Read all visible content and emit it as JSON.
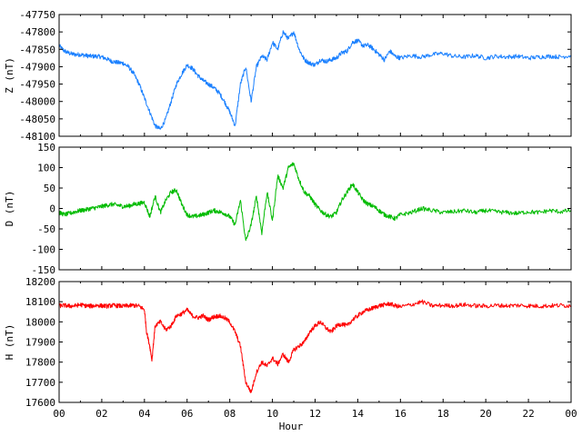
{
  "chart_data": [
    {
      "type": "line",
      "panel": "Z",
      "ylabel": "Z (nT)",
      "ylim": [
        -48100,
        -47750
      ],
      "yticks": [
        -47750,
        -47800,
        -47850,
        -47900,
        -47950,
        -48000,
        -48050,
        -48100
      ],
      "xlim": [
        0,
        24
      ],
      "grid": false,
      "color": "#1a80ff",
      "series": [
        {
          "x": [
            0,
            0.25,
            0.5,
            0.75,
            1,
            1.25,
            1.5,
            1.75,
            2,
            2.25,
            2.5,
            2.75,
            3,
            3.25,
            3.5,
            3.75,
            4,
            4.25,
            4.5,
            4.75,
            5,
            5.25,
            5.5,
            5.75,
            6,
            6.25,
            6.5,
            6.75,
            7,
            7.25,
            7.5,
            7.75,
            8,
            8.25,
            8.5,
            8.75,
            9,
            9.25,
            9.5,
            9.75,
            10,
            10.25,
            10.5,
            10.75,
            11,
            11.25,
            11.5,
            11.75,
            12,
            12.25,
            12.5,
            12.75,
            13,
            13.25,
            13.5,
            13.75,
            14,
            14.25,
            14.5,
            14.75,
            15,
            15.25,
            15.5,
            15.75,
            16,
            16.5,
            17,
            17.5,
            18,
            18.5,
            19,
            19.5,
            20,
            20.5,
            21,
            21.5,
            22,
            22.5,
            23,
            23.5,
            24
          ],
          "values": [
            -47840,
            -47855,
            -47862,
            -47865,
            -47865,
            -47868,
            -47870,
            -47870,
            -47872,
            -47878,
            -47885,
            -47888,
            -47890,
            -47900,
            -47920,
            -47950,
            -47990,
            -48030,
            -48070,
            -48080,
            -48050,
            -48000,
            -47950,
            -47920,
            -47895,
            -47905,
            -47925,
            -47940,
            -47950,
            -47960,
            -47975,
            -48000,
            -48030,
            -48070,
            -47950,
            -47900,
            -48000,
            -47900,
            -47870,
            -47880,
            -47830,
            -47850,
            -47800,
            -47820,
            -47800,
            -47850,
            -47880,
            -47890,
            -47895,
            -47880,
            -47885,
            -47880,
            -47875,
            -47860,
            -47855,
            -47830,
            -47825,
            -47840,
            -47838,
            -47850,
            -47865,
            -47880,
            -47855,
            -47870,
            -47875,
            -47868,
            -47872,
            -47865,
            -47862,
            -47870,
            -47872,
            -47868,
            -47875,
            -47870,
            -47872,
            -47870,
            -47875,
            -47872,
            -47870,
            -47872,
            -47868
          ]
        }
      ]
    },
    {
      "type": "line",
      "panel": "D",
      "ylabel": "D (nT)",
      "ylim": [
        -150,
        150
      ],
      "yticks": [
        150,
        100,
        50,
        0,
        -50,
        -100,
        -150
      ],
      "xlim": [
        0,
        24
      ],
      "grid": false,
      "color": "#00bb00",
      "series": [
        {
          "x": [
            0,
            0.25,
            0.5,
            0.75,
            1,
            1.25,
            1.5,
            1.75,
            2,
            2.25,
            2.5,
            2.75,
            3,
            3.25,
            3.5,
            3.75,
            4,
            4.25,
            4.5,
            4.75,
            5,
            5.25,
            5.5,
            5.75,
            6,
            6.25,
            6.5,
            6.75,
            7,
            7.25,
            7.5,
            7.75,
            8,
            8.25,
            8.5,
            8.75,
            9,
            9.25,
            9.5,
            9.75,
            10,
            10.25,
            10.5,
            10.75,
            11,
            11.25,
            11.5,
            11.75,
            12,
            12.25,
            12.5,
            12.75,
            13,
            13.25,
            13.5,
            13.75,
            14,
            14.25,
            14.5,
            14.75,
            15,
            15.25,
            15.5,
            15.75,
            16,
            16.5,
            17,
            17.5,
            18,
            18.5,
            19,
            19.5,
            20,
            20.5,
            21,
            21.5,
            22,
            22.5,
            23,
            23.5,
            24
          ],
          "values": [
            -10,
            -15,
            -12,
            -8,
            -5,
            -3,
            0,
            2,
            5,
            8,
            10,
            8,
            5,
            6,
            10,
            12,
            15,
            -20,
            30,
            -10,
            20,
            40,
            45,
            10,
            -15,
            -20,
            -18,
            -15,
            -10,
            -5,
            -8,
            -12,
            -20,
            -40,
            20,
            -80,
            -40,
            30,
            -60,
            40,
            -30,
            80,
            50,
            100,
            110,
            70,
            40,
            30,
            10,
            -5,
            -15,
            -20,
            -10,
            20,
            40,
            60,
            40,
            20,
            10,
            5,
            -5,
            -15,
            -20,
            -25,
            -15,
            -10,
            0,
            -5,
            -10,
            -8,
            -5,
            -10,
            -5,
            -8,
            -10,
            -12,
            -8,
            -10,
            -5,
            -8,
            -5
          ]
        }
      ]
    },
    {
      "type": "line",
      "panel": "H",
      "ylabel": "H (nT)",
      "xlabel": "Hour",
      "ylim": [
        17600,
        18200
      ],
      "yticks": [
        18200,
        18100,
        18000,
        17900,
        17800,
        17700,
        17600
      ],
      "xlim": [
        0,
        24
      ],
      "xticks": [
        "00",
        "02",
        "04",
        "06",
        "08",
        "10",
        "12",
        "14",
        "16",
        "18",
        "20",
        "22",
        "00"
      ],
      "grid": false,
      "color": "#ff0000",
      "series": [
        {
          "x": [
            0,
            0.25,
            0.5,
            0.75,
            1,
            1.25,
            1.5,
            1.75,
            2,
            2.25,
            2.5,
            2.75,
            3,
            3.25,
            3.5,
            3.75,
            4,
            4.1,
            4.25,
            4.35,
            4.5,
            4.75,
            5,
            5.25,
            5.5,
            5.75,
            6,
            6.25,
            6.5,
            6.75,
            7,
            7.25,
            7.5,
            7.75,
            8,
            8.25,
            8.5,
            8.75,
            9,
            9.25,
            9.5,
            9.75,
            10,
            10.25,
            10.5,
            10.75,
            11,
            11.25,
            11.5,
            11.75,
            12,
            12.25,
            12.5,
            12.75,
            13,
            13.25,
            13.5,
            13.75,
            14,
            14.25,
            14.5,
            14.75,
            15,
            15.25,
            15.5,
            15.75,
            16,
            16.5,
            17,
            17.5,
            18,
            18.5,
            19,
            19.5,
            20,
            20.5,
            21,
            21.5,
            22,
            22.5,
            23,
            23.5,
            24
          ],
          "values": [
            18080,
            18082,
            18078,
            18080,
            18085,
            18080,
            18078,
            18082,
            18080,
            18078,
            18082,
            18080,
            18078,
            18080,
            18082,
            18078,
            18060,
            17950,
            17880,
            17810,
            17980,
            18000,
            17960,
            17980,
            18030,
            18040,
            18060,
            18030,
            18020,
            18030,
            18010,
            18025,
            18030,
            18020,
            18000,
            17950,
            17880,
            17700,
            17650,
            17750,
            17800,
            17780,
            17820,
            17790,
            17840,
            17800,
            17860,
            17880,
            17900,
            17950,
            17980,
            18000,
            17970,
            17950,
            17980,
            17990,
            17980,
            18010,
            18030,
            18050,
            18060,
            18070,
            18080,
            18085,
            18090,
            18080,
            18075,
            18085,
            18100,
            18080,
            18082,
            18080,
            18085,
            18080,
            18078,
            18082,
            18080,
            18082,
            18080,
            18078,
            18080,
            18082,
            18080
          ]
        }
      ]
    }
  ]
}
